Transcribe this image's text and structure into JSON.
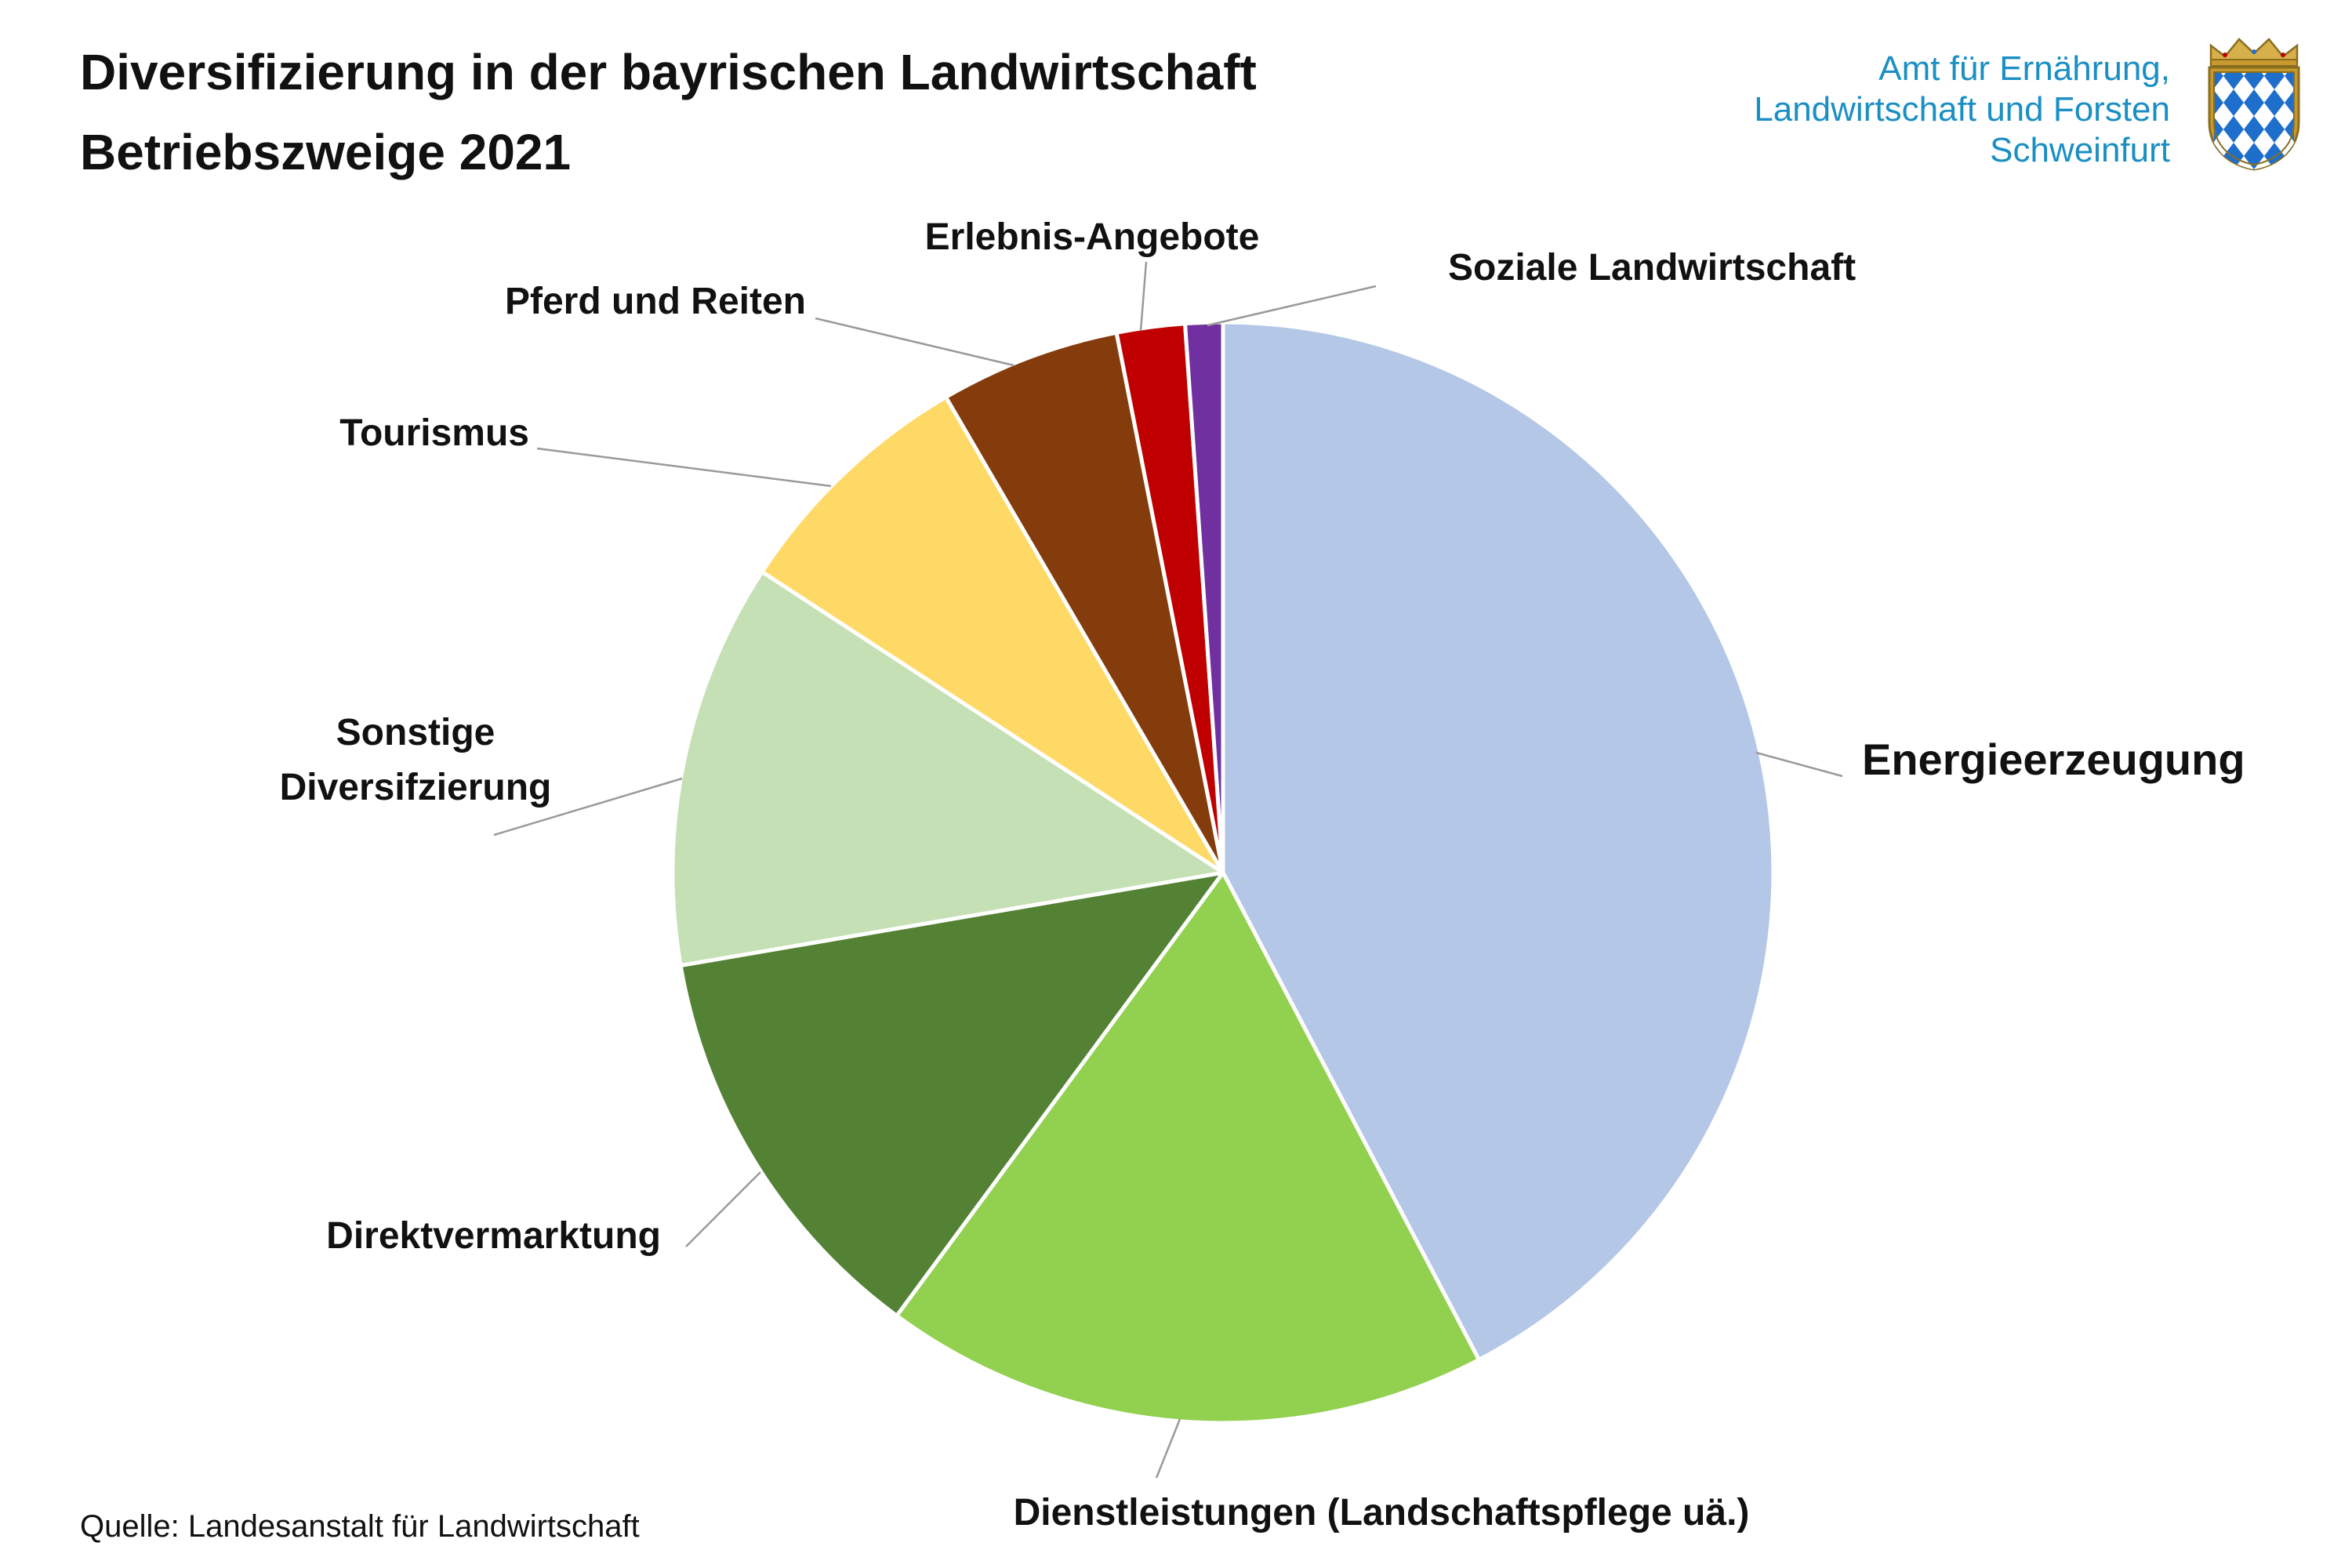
{
  "title": {
    "line1": "Diversifizierung in der bayrischen Landwirtschaft",
    "line2": "Betriebszweige 2021"
  },
  "organization": {
    "line1": "Amt für Ernährung,",
    "line2": "Landwirtschaft und Forsten",
    "line3": "Schweinfurt",
    "color": "#1a8fc4",
    "logo_icon": "bavarian-crest-icon"
  },
  "source": "Quelle: Landesanstalt für Landwirtschaft",
  "chart_data": {
    "type": "pie",
    "title": "",
    "start_angle_deg": 0,
    "direction": "clockwise",
    "legend": "none",
    "labels_outside_with_leader_lines": true,
    "slices": [
      {
        "label": [
          "Energieerzeugung"
        ],
        "value": 42.3,
        "color": "#b4c7e7"
      },
      {
        "label": [
          "Dienstleistungen (Landschaftspflege uä.)"
        ],
        "value": 17.8,
        "color": "#92d050"
      },
      {
        "label": [
          "Direktvermarktung"
        ],
        "value": 12.2,
        "color": "#548235"
      },
      {
        "label": [
          "Sonstige",
          "Diversifzierung"
        ],
        "value": 11.9,
        "color": "#c5e0b4"
      },
      {
        "label": [
          "Tourismus"
        ],
        "value": 7.4,
        "color": "#ffd966"
      },
      {
        "label": [
          "Pferd und Reiten"
        ],
        "value": 5.3,
        "color": "#843c0c"
      },
      {
        "label": [
          "Erlebnis-Angebote"
        ],
        "value": 2.0,
        "color": "#c00000"
      },
      {
        "label": [
          "Soziale Landwirtschaft"
        ],
        "value": 1.1,
        "color": "#7030a0"
      }
    ]
  }
}
